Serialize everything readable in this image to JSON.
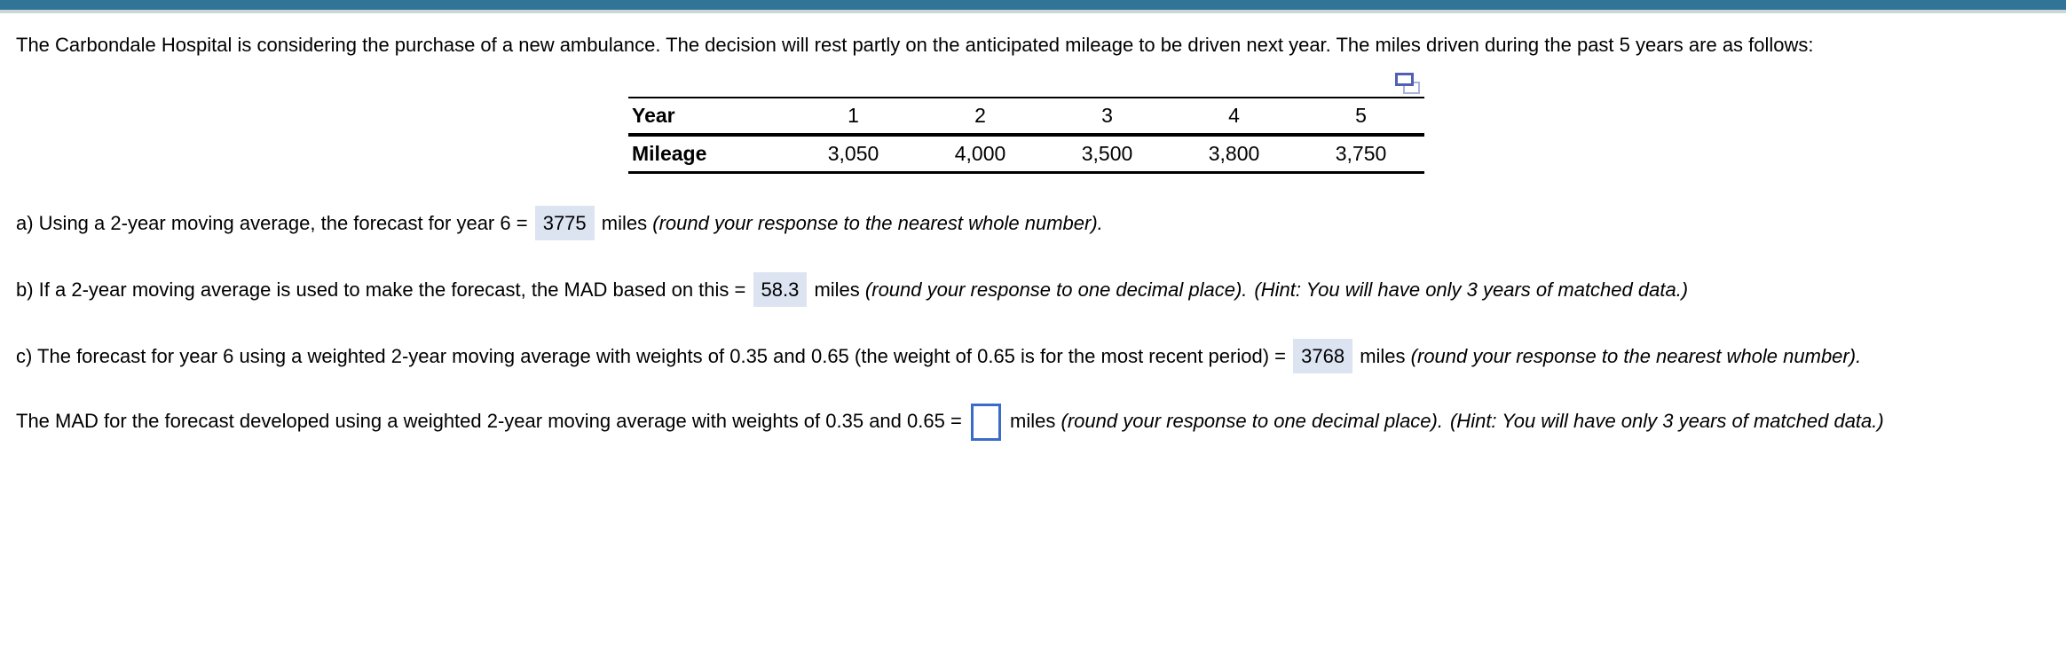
{
  "colors": {
    "topbar": "#317596",
    "divider": "#ccd5da",
    "highlight": "#dce3f1",
    "inputBorder": "#3b6bc8",
    "iconFront": "#5060b5",
    "iconBack": "#a9b2de"
  },
  "problem": {
    "intro": "The Carbondale Hospital is considering the purchase of a new ambulance. The decision will rest partly on the anticipated mileage to be driven next year. The miles driven during the past 5 years are as follows:",
    "table": {
      "row1_header": "Year",
      "row2_header": "Mileage",
      "years": [
        "1",
        "2",
        "3",
        "4",
        "5"
      ],
      "mileage": [
        "3,050",
        "4,000",
        "3,500",
        "3,800",
        "3,750"
      ]
    },
    "icons": {
      "duplicate_table_icon": "duplicate-window-icon"
    },
    "parts": {
      "a": {
        "prefix": "a) Using a 2-year moving average, the forecast for year 6 =",
        "answer": "3775",
        "unit": "miles",
        "note": "(round your response to the nearest whole number)."
      },
      "b": {
        "prefix": "b) If a 2-year moving average is used to make the forecast, the MAD based on this =",
        "answer": "58.3",
        "unit": "miles",
        "note": "(round your response to one decimal place).",
        "hint": "(Hint: You will have only 3 years of matched data.)"
      },
      "c": {
        "prefix": "c) The forecast for year 6 using a weighted 2-year moving average with weights of 0.35 and 0.65 (the weight of 0.65 is for the most recent period) =",
        "answer": "3768",
        "unit": "miles",
        "note": "(round your response to the nearest whole number)."
      },
      "d": {
        "prefix": "The MAD for the forecast developed using a weighted 2-year moving average with weights of 0.35 and 0.65 =",
        "answer": "",
        "unit": "miles",
        "note": "(round your response to one decimal place).",
        "hint": "(Hint: You will have only 3 years of matched data.)"
      }
    }
  }
}
